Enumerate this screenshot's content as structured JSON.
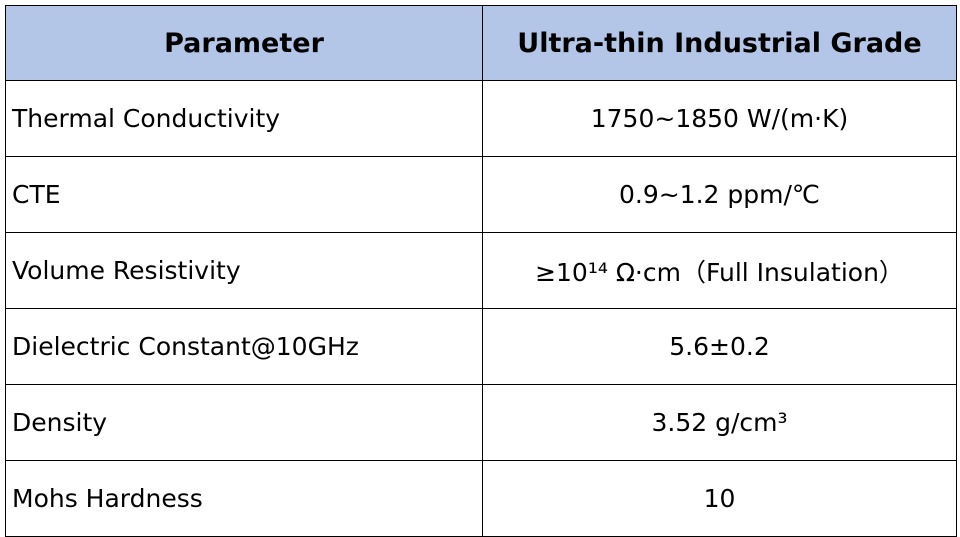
{
  "table": {
    "header": [
      "Parameter",
      "Ultra-thin Industrial Grade"
    ],
    "rows": [
      [
        "Thermal Conductivity",
        "1750~1850 W/(m·K)"
      ],
      [
        "CTE",
        "0.9~1.2 ppm/℃"
      ],
      [
        "Volume Resistivity",
        "≥10¹⁴ Ω·cm（Full Insulation）"
      ],
      [
        "Dielectric Constant@10GHz",
        "5.6±0.2"
      ],
      [
        "Density",
        "3.52 g/cm³"
      ],
      [
        "Mohs Hardness",
        "10"
      ]
    ]
  }
}
